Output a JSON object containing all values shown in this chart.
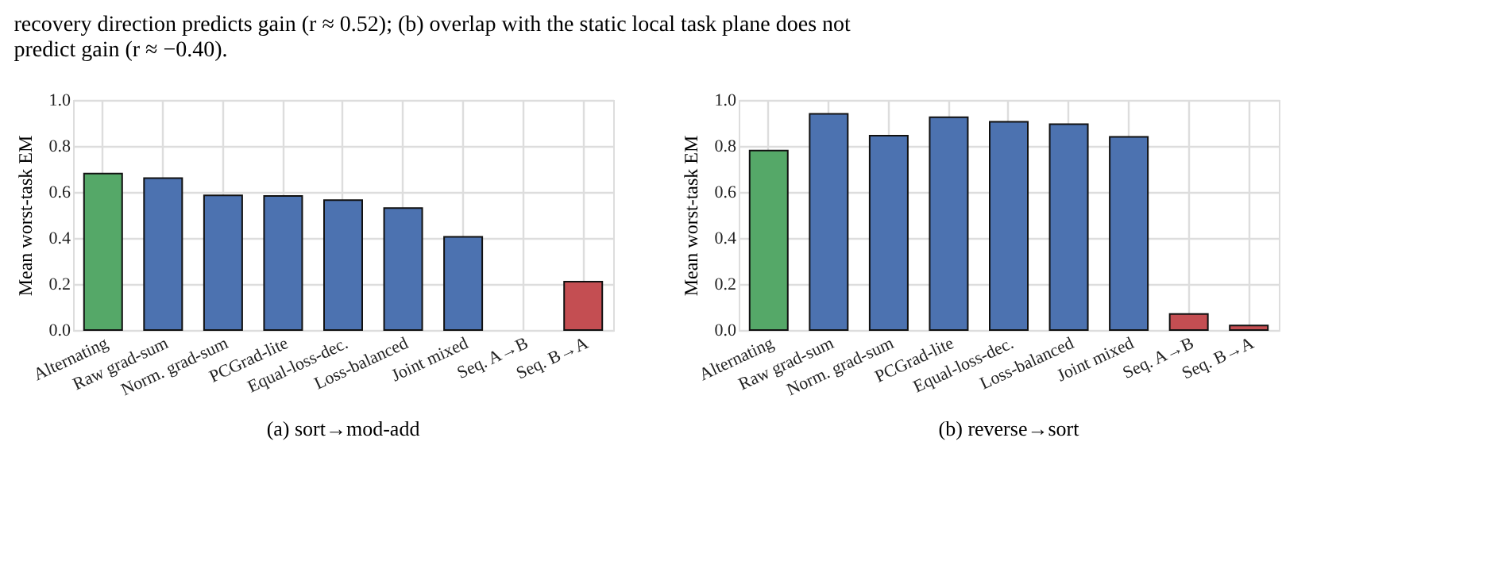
{
  "chart_data": [
    {
      "type": "bar",
      "title": "(a) sort→mod-add",
      "ylabel": "Mean worst-task EM",
      "annotations": [
        "recovery direction predicts gain (r ≈ 0.52); (b) overlap with the static local task plane does not predict gain (r ≈ −0.40)."
      ],
      "categories": [
        "Alternating",
        "Raw grad-sum",
        "Norm. grad-sum",
        "PCGrad-lite",
        "Equal-loss-dec.",
        "Loss-balanced",
        "Joint mixed",
        "Seq. A→B",
        "Seq. B→A"
      ],
      "values": [
        0.68,
        0.66,
        0.585,
        0.583,
        0.565,
        0.53,
        0.405,
        null,
        0.21
      ],
      "colors": [
        "#55a868",
        "#4c72b0",
        "#4c72b0",
        "#4c72b0",
        "#4c72b0",
        "#4c72b0",
        "#4c72b0",
        null,
        "#c44e52"
      ],
      "ylim": [
        0,
        1
      ],
      "yticks": [
        {
          "value": 0,
          "label": "0.0"
        },
        {
          "value": 0.2,
          "label": "0.2"
        },
        {
          "value": 0.4,
          "label": "0.4"
        },
        {
          "value": 0.6,
          "label": "0.6"
        },
        {
          "value": 0.8,
          "label": "0.8"
        },
        {
          "value": 1,
          "label": "1.0"
        }
      ],
      "grid": true
    },
    {
      "type": "bar",
      "title": "(b) reverse→sort",
      "ylabel": "Mean worst-task EM",
      "categories": [
        "Alternating",
        "Raw grad-sum",
        "Norm. grad-sum",
        "PCGrad-lite",
        "Equal-loss-dec.",
        "Loss-balanced",
        "Joint mixed",
        "Seq. A→B",
        "Seq. B→A"
      ],
      "values": [
        0.78,
        0.94,
        0.845,
        0.925,
        0.905,
        0.895,
        0.84,
        0.07,
        0.02
      ],
      "colors": [
        "#55a868",
        "#4c72b0",
        "#4c72b0",
        "#4c72b0",
        "#4c72b0",
        "#4c72b0",
        "#4c72b0",
        "#c44e52",
        "#c44e52"
      ],
      "ylim": [
        0,
        1
      ],
      "yticks": [
        {
          "value": 0,
          "label": "0.0"
        },
        {
          "value": 0.2,
          "label": "0.2"
        },
        {
          "value": 0.4,
          "label": "0.4"
        },
        {
          "value": 0.6,
          "label": "0.6"
        },
        {
          "value": 0.8,
          "label": "0.8"
        },
        {
          "value": 1,
          "label": "1.0"
        }
      ],
      "grid": true
    }
  ]
}
